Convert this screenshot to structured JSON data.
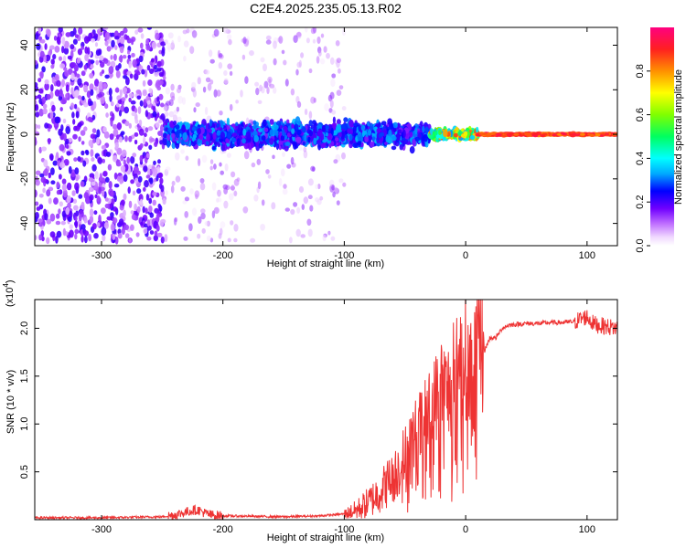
{
  "title": "C2E4.2025.235.05.13.R02",
  "colors": {
    "snr_line": "#ee3333",
    "frame": "#000000"
  },
  "chart_data": [
    {
      "type": "heatmap",
      "xlabel": "Height of straight line (km)",
      "ylabel": "Frequency (Hz)",
      "xlim": [
        -355,
        125
      ],
      "ylim": [
        -50,
        48
      ],
      "xticks": [
        {
          "v": -300,
          "label": "-300"
        },
        {
          "v": -200,
          "label": "-200"
        },
        {
          "v": -100,
          "label": "-100"
        },
        {
          "v": 0,
          "label": "0"
        },
        {
          "v": 100,
          "label": "100"
        }
      ],
      "yticks": [
        {
          "v": -40,
          "label": "-40"
        },
        {
          "v": -20,
          "label": "-20"
        },
        {
          "v": 0,
          "label": "0"
        },
        {
          "v": 20,
          "label": "20"
        },
        {
          "v": 40,
          "label": "40"
        }
      ],
      "colorbar": {
        "label": "Normalized spectral amplitude",
        "range": [
          0,
          1
        ],
        "ticks": [
          {
            "v": 0.0,
            "label": "0.0"
          },
          {
            "v": 0.2,
            "label": "0.2"
          },
          {
            "v": 0.4,
            "label": "0.4"
          },
          {
            "v": 0.6,
            "label": "0.6"
          },
          {
            "v": 0.8,
            "label": "0.8"
          }
        ]
      },
      "regions": [
        {
          "x": [
            -355,
            -248
          ],
          "freq_spread": 48,
          "amplitude": [
            0.05,
            0.22
          ],
          "density": "high"
        },
        {
          "x": [
            -248,
            -100
          ],
          "freq_spread": 48,
          "amplitude": [
            0.02,
            0.15
          ],
          "density": "sparse"
        },
        {
          "x": [
            -248,
            -30
          ],
          "freq_spread": 8,
          "amplitude": [
            0.15,
            0.35
          ],
          "density": "band"
        },
        {
          "x": [
            -30,
            10
          ],
          "freq_spread": 3,
          "amplitude": [
            0.3,
            0.9
          ],
          "density": "band"
        },
        {
          "x": [
            10,
            125
          ],
          "freq_spread": 1,
          "amplitude": [
            0.8,
            0.95
          ],
          "density": "line"
        }
      ]
    },
    {
      "type": "line",
      "xlabel": "Height of straight line (km)",
      "ylabel": "SNR (10 * v/v)",
      "y_multiplier": "(x10",
      "y_multiplier_exp": "4",
      "xlim": [
        -355,
        125
      ],
      "ylim": [
        0,
        2.3
      ],
      "xticks": [
        {
          "v": -300,
          "label": "-300"
        },
        {
          "v": -200,
          "label": "-200"
        },
        {
          "v": -100,
          "label": "-100"
        },
        {
          "v": 0,
          "label": "0"
        },
        {
          "v": 100,
          "label": "100"
        }
      ],
      "yticks": [
        {
          "v": 0.5,
          "label": "0.5"
        },
        {
          "v": 1.0,
          "label": "1.0"
        },
        {
          "v": 1.5,
          "label": "1.5"
        },
        {
          "v": 2.0,
          "label": "2.0"
        }
      ],
      "series": [
        {
          "x": [
            -355,
            -300,
            -250,
            -240,
            -230,
            -225,
            -220,
            -215,
            -210,
            -200,
            -150,
            -120,
            -100,
            -90,
            -80,
            -70,
            -60,
            -55,
            -50,
            -45,
            -40,
            -35,
            -30,
            -25,
            -20,
            -15,
            -10,
            -5,
            0,
            5,
            10,
            15,
            20,
            25,
            30,
            35,
            40,
            50,
            60,
            70,
            80,
            90,
            95,
            100,
            105,
            110,
            115,
            125
          ],
          "y": [
            0.02,
            0.02,
            0.03,
            0.05,
            0.08,
            0.1,
            0.1,
            0.07,
            0.05,
            0.04,
            0.03,
            0.04,
            0.06,
            0.1,
            0.18,
            0.3,
            0.45,
            0.55,
            0.65,
            0.8,
            0.9,
            1.0,
            1.1,
            1.25,
            1.4,
            1.3,
            1.5,
            1.6,
            1.7,
            1.4,
            1.85,
            1.75,
            1.9,
            1.9,
            2.0,
            2.03,
            2.04,
            2.05,
            2.05,
            2.06,
            2.06,
            2.07,
            2.1,
            2.12,
            2.05,
            2.03,
            2.02,
            2.0
          ]
        }
      ]
    }
  ]
}
